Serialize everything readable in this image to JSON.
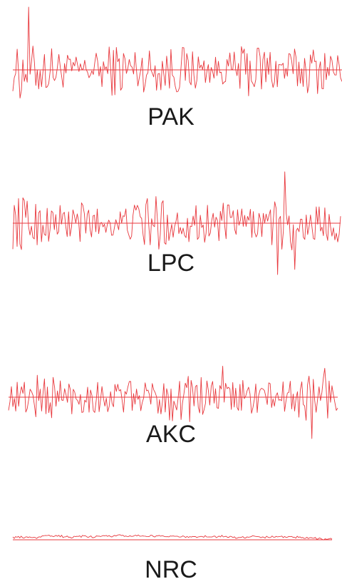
{
  "chart_data": [
    {
      "type": "line",
      "title": "PAK",
      "xlabel": "",
      "ylabel": "",
      "style": "dense-noise",
      "samples": 230,
      "amplitude": 0.3,
      "spikes": [
        {
          "at": 0.05,
          "value": 1.0
        },
        {
          "at": 0.02,
          "value": -0.45
        }
      ],
      "color": "#e8383d"
    },
    {
      "type": "line",
      "title": "LPC",
      "xlabel": "",
      "ylabel": "",
      "style": "dense-noise",
      "samples": 230,
      "amplitude": 0.35,
      "spikes": [
        {
          "at": 0.83,
          "value": 1.0
        },
        {
          "at": 0.81,
          "value": -1.0
        },
        {
          "at": 0.86,
          "value": -0.9
        }
      ],
      "color": "#e8383d"
    },
    {
      "type": "line",
      "title": "AKC",
      "xlabel": "",
      "ylabel": "",
      "style": "dense-noise",
      "samples": 230,
      "amplitude": 0.4,
      "spikes": [
        {
          "at": 0.65,
          "value": 0.75
        },
        {
          "at": 0.92,
          "value": -1.0
        },
        {
          "at": 0.96,
          "value": 0.7
        }
      ],
      "color": "#e8383d"
    },
    {
      "type": "line",
      "title": "NRC",
      "xlabel": "",
      "ylabel": "",
      "style": "flat",
      "samples": 230,
      "amplitude": 0.05,
      "spikes": [],
      "color": "#e8383d"
    }
  ]
}
